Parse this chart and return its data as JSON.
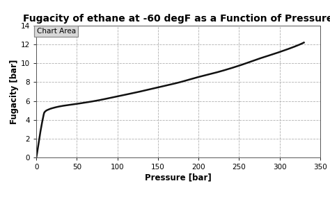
{
  "title": "Fugacity of ethane at -60 degF as a Function of Pressure",
  "xlabel": "Pressure [bar]",
  "ylabel": "Fugacity [bar]",
  "xlim": [
    0,
    350
  ],
  "ylim": [
    0,
    14
  ],
  "xticks": [
    0,
    50,
    100,
    150,
    200,
    250,
    300,
    350
  ],
  "yticks": [
    0,
    2,
    4,
    6,
    8,
    10,
    12,
    14
  ],
  "line_color": "#111111",
  "line_width": 1.8,
  "grid_color": "#b0b0b0",
  "grid_linestyle": "--",
  "background_color": "#ffffff",
  "plot_bg_color": "#ffffff",
  "chart_area_label": "Chart Area",
  "title_fontsize": 10,
  "label_fontsize": 8.5,
  "tick_fontsize": 7.5,
  "fugacity_points_x": [
    0,
    1,
    2,
    4,
    6,
    8,
    10,
    15,
    20,
    30,
    50,
    75,
    100,
    125,
    150,
    175,
    200,
    225,
    250,
    275,
    300,
    325,
    330
  ],
  "fugacity_points_y": [
    0,
    0.5,
    1.1,
    2.2,
    3.2,
    4.1,
    4.8,
    5.1,
    5.25,
    5.45,
    5.7,
    6.05,
    6.5,
    6.95,
    7.45,
    7.95,
    8.55,
    9.1,
    9.75,
    10.5,
    11.2,
    12.0,
    12.2
  ]
}
